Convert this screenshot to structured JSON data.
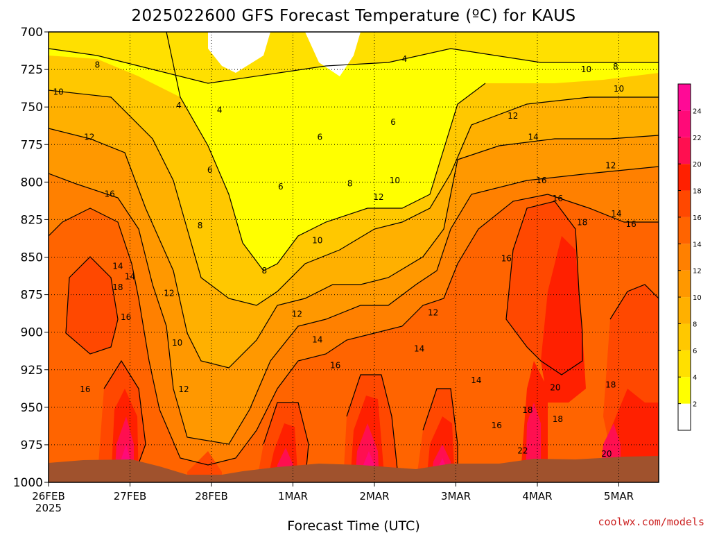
{
  "chart_data": {
    "type": "heatmap",
    "title": "2025022600 GFS Forecast Temperature (ºC) for KAUS",
    "xlabel": "Forecast Time (UTC)",
    "ylabel": "",
    "y_axis": {
      "ticks": [
        700,
        725,
        750,
        775,
        800,
        825,
        850,
        875,
        900,
        925,
        950,
        975,
        1000
      ],
      "range": [
        700,
        1000
      ]
    },
    "x_axis": {
      "ticks": [
        "26FEB",
        "27FEB",
        "28FEB",
        "1MAR",
        "2MAR",
        "3MAR",
        "4MAR",
        "5MAR"
      ],
      "first_tick_year": "2025"
    },
    "colorbar": {
      "ticks": [
        2,
        4,
        6,
        8,
        10,
        12,
        14,
        16,
        18,
        20,
        22,
        24
      ],
      "colors": [
        "#ffffff",
        "#ffff00",
        "#ffe000",
        "#ffc800",
        "#ffb000",
        "#ff9800",
        "#ff8000",
        "#ff6400",
        "#ff4800",
        "#ff2000",
        "#ff0f50",
        "#ff0a78",
        "#ff0a96"
      ]
    },
    "contour_labels": [
      {
        "t": 0.6,
        "p": 722,
        "v": 8
      },
      {
        "t": 0.12,
        "p": 740,
        "v": 10
      },
      {
        "t": 0.5,
        "p": 770,
        "v": 12
      },
      {
        "t": 0.75,
        "p": 808,
        "v": 16
      },
      {
        "t": 0.85,
        "p": 856,
        "v": 14
      },
      {
        "t": 0.85,
        "p": 870,
        "v": 18
      },
      {
        "t": 1.0,
        "p": 863,
        "v": 14
      },
      {
        "t": 0.95,
        "p": 890,
        "v": 16
      },
      {
        "t": 0.45,
        "p": 938,
        "v": 16
      },
      {
        "t": 1.48,
        "p": 874,
        "v": 12
      },
      {
        "t": 1.58,
        "p": 907,
        "v": 10
      },
      {
        "t": 1.66,
        "p": 938,
        "v": 12
      },
      {
        "t": 1.6,
        "p": 749,
        "v": 4
      },
      {
        "t": 2.1,
        "p": 752,
        "v": 4
      },
      {
        "t": 1.98,
        "p": 792,
        "v": 6
      },
      {
        "t": 1.86,
        "p": 829,
        "v": 8
      },
      {
        "t": 2.85,
        "p": 803,
        "v": 6
      },
      {
        "t": 2.65,
        "p": 859,
        "v": 8
      },
      {
        "t": 3.05,
        "p": 888,
        "v": 12
      },
      {
        "t": 3.3,
        "p": 905,
        "v": 14
      },
      {
        "t": 3.52,
        "p": 922,
        "v": 16
      },
      {
        "t": 3.3,
        "p": 839,
        "v": 10
      },
      {
        "t": 3.33,
        "p": 770,
        "v": 6
      },
      {
        "t": 3.7,
        "p": 801,
        "v": 8
      },
      {
        "t": 4.23,
        "p": 760,
        "v": 6
      },
      {
        "t": 4.37,
        "p": 718,
        "v": 4
      },
      {
        "t": 4.25,
        "p": 799,
        "v": 10
      },
      {
        "t": 4.72,
        "p": 887,
        "v": 12
      },
      {
        "t": 4.55,
        "p": 911,
        "v": 14
      },
      {
        "t": 4.05,
        "p": 810,
        "v": 12
      },
      {
        "t": 5.25,
        "p": 932,
        "v": 14
      },
      {
        "t": 5.5,
        "p": 962,
        "v": 16
      },
      {
        "t": 5.62,
        "p": 851,
        "v": 16
      },
      {
        "t": 5.7,
        "p": 756,
        "v": 12
      },
      {
        "t": 5.95,
        "p": 770,
        "v": 14
      },
      {
        "t": 6.05,
        "p": 799,
        "v": 16
      },
      {
        "t": 6.25,
        "p": 811,
        "v": 16
      },
      {
        "t": 6.55,
        "p": 827,
        "v": 18
      },
      {
        "t": 6.25,
        "p": 958,
        "v": 18
      },
      {
        "t": 6.22,
        "p": 937,
        "v": 20
      },
      {
        "t": 5.88,
        "p": 952,
        "v": 18
      },
      {
        "t": 5.82,
        "p": 979,
        "v": 22
      },
      {
        "t": 6.6,
        "p": 725,
        "v": 10
      },
      {
        "t": 6.9,
        "p": 789,
        "v": 12
      },
      {
        "t": 6.97,
        "p": 821,
        "v": 14
      },
      {
        "t": 7.0,
        "p": 738,
        "v": 10
      },
      {
        "t": 6.96,
        "p": 723,
        "v": 8
      },
      {
        "t": 7.15,
        "p": 828,
        "v": 16
      },
      {
        "t": 6.9,
        "p": 935,
        "v": 18
      },
      {
        "t": 6.85,
        "p": 981,
        "v": 20
      }
    ]
  },
  "credit": "coolwx.com/models"
}
